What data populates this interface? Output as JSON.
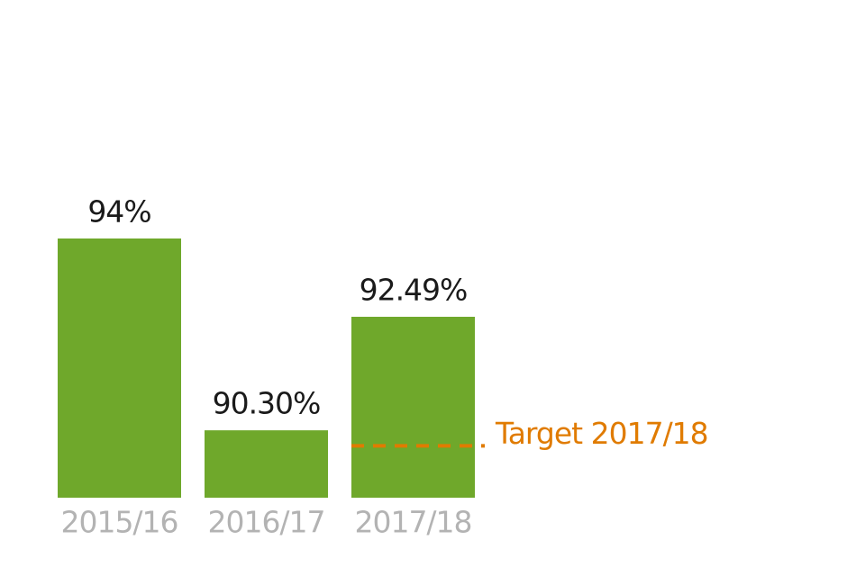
{
  "chart_data": {
    "type": "bar",
    "categories": [
      "2015/16",
      "2016/17",
      "2017/18"
    ],
    "values": [
      94,
      90.3,
      92.49
    ],
    "value_labels": [
      "94%",
      "90.30%",
      "92.49%"
    ],
    "color": "#6fa82b",
    "ylim": [
      89,
      95
    ],
    "target": {
      "value": 90,
      "label": "Target 2017/18",
      "color": "#e07b00"
    }
  }
}
